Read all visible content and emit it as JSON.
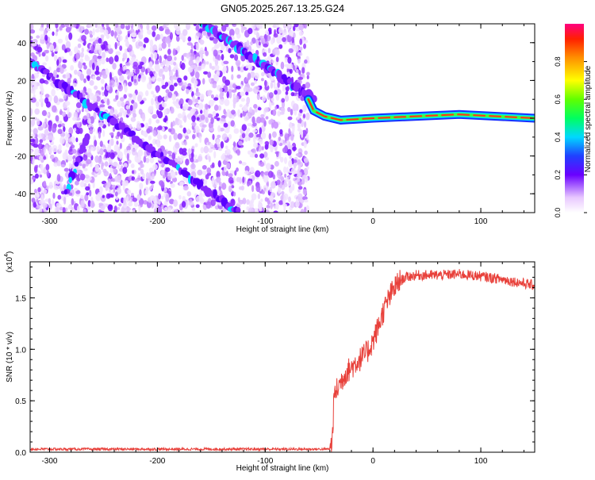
{
  "title": "GN05.2025.267.13.25.G24",
  "chart_data": [
    {
      "type": "heatmap",
      "xlabel": "Height of straight line (km)",
      "ylabel": "Frequency (Hz)",
      "xlim": [
        -318,
        150
      ],
      "ylim": [
        -50,
        50
      ],
      "xticks": [
        -300,
        -200,
        -100,
        0,
        100
      ],
      "xtick_labels": [
        "-300",
        "-200",
        "-100",
        "0",
        "100"
      ],
      "yticks": [
        -40,
        -20,
        0,
        20,
        40
      ],
      "ytick_labels": [
        "-40",
        "-20",
        "0",
        "20",
        "40"
      ],
      "colorbar": {
        "label": "Normalized spectral amplitude",
        "range": [
          0,
          1
        ],
        "ticks": [
          0.0,
          0.2,
          0.4,
          0.6,
          0.8
        ],
        "tick_labels": [
          "0.0",
          "0.2",
          "0.4",
          "0.6",
          "0.8"
        ]
      },
      "features": [
        {
          "kind": "diagonal-streak",
          "from": [
            -318,
            30
          ],
          "to": [
            -125,
            -50
          ]
        },
        {
          "kind": "diagonal-streak",
          "from": [
            -158,
            50
          ],
          "to": [
            -55,
            10
          ]
        },
        {
          "kind": "short-streak",
          "from": [
            -265,
            -10
          ],
          "to": [
            -285,
            -40
          ]
        },
        {
          "kind": "dc-line",
          "points": [
            [
              -60,
              10
            ],
            [
              -55,
              4
            ],
            [
              -45,
              1
            ],
            [
              -30,
              -1
            ],
            [
              0,
              0
            ],
            [
              80,
              2
            ],
            [
              150,
              0
            ]
          ]
        }
      ],
      "noise_region_xmax": -60
    },
    {
      "type": "line",
      "xlabel": "Height of straight line (km)",
      "ylabel": "SNR (10 * v/v)",
      "scale_note": "(x10",
      "scale_exp": "4",
      "xlim": [
        -318,
        150
      ],
      "ylim": [
        0,
        1.85
      ],
      "xticks": [
        -300,
        -200,
        -100,
        0,
        100
      ],
      "xtick_labels": [
        "-300",
        "-200",
        "-100",
        "0",
        "100"
      ],
      "yticks": [
        0.0,
        0.5,
        1.0,
        1.5
      ],
      "ytick_labels": [
        "0.0",
        "0.5",
        "1.0",
        "1.5"
      ],
      "color": "#e8403a",
      "series": [
        {
          "x": [
            -318,
            -100,
            -40,
            -38,
            -36,
            -33,
            -30,
            -25,
            -20,
            -15,
            -10,
            -5,
            0,
            5,
            10,
            15,
            20,
            25,
            30,
            40,
            50,
            60,
            80,
            100,
            120,
            150
          ],
          "y": [
            0.03,
            0.03,
            0.03,
            0.08,
            0.55,
            0.62,
            0.68,
            0.78,
            0.82,
            0.88,
            0.92,
            0.98,
            1.08,
            1.22,
            1.38,
            1.5,
            1.6,
            1.66,
            1.7,
            1.72,
            1.72,
            1.72,
            1.73,
            1.71,
            1.68,
            1.62
          ]
        }
      ]
    }
  ]
}
